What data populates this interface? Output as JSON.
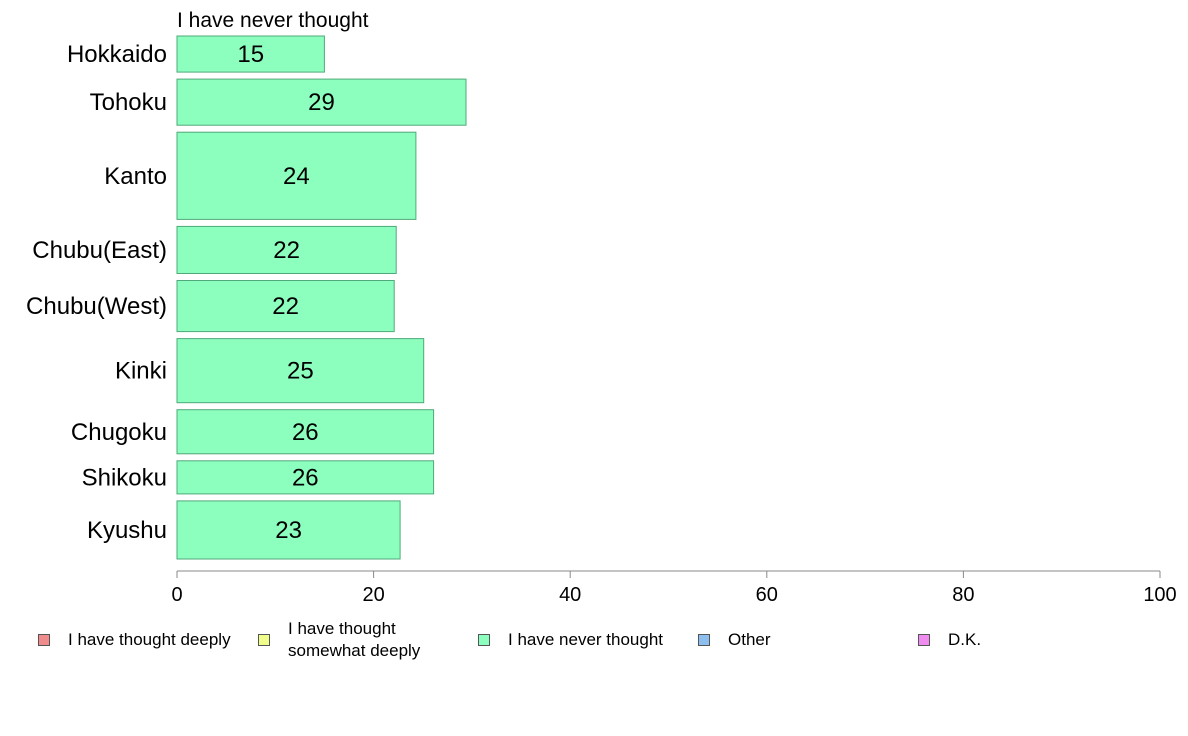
{
  "chart_data": {
    "type": "bar",
    "orientation": "horizontal",
    "title": "I have never thought",
    "categories": [
      "Hokkaido",
      "Tohoku",
      "Kanto",
      "Chubu(East)",
      "Chubu(West)",
      "Kinki",
      "Chugoku",
      "Shikoku",
      "Kyushu"
    ],
    "values": [
      15,
      29,
      24,
      22,
      22,
      25,
      26,
      26,
      23
    ],
    "bar_values": [
      15,
      29.4,
      24.3,
      22.3,
      22.1,
      25.1,
      26.1,
      26.1,
      22.7
    ],
    "bar_weights": [
      36,
      46,
      87,
      47,
      51,
      64,
      44,
      33,
      58
    ],
    "xlim": [
      0,
      100
    ],
    "xticks": [
      0,
      20,
      40,
      60,
      80,
      100
    ],
    "bar_color": "#8cffbe",
    "bar_edge_color": "#4fa97a",
    "grid": false,
    "legend_position": "bottom",
    "legend": [
      {
        "label": "I have thought deeply",
        "color": "#f08c8c"
      },
      {
        "label": "I have thought\nsomewhat deeply",
        "color": "#f0ff8c"
      },
      {
        "label": "I have never thought",
        "color": "#8cffbe"
      },
      {
        "label": "Other",
        "color": "#8cbef0"
      },
      {
        "label": "D.K.",
        "color": "#f08cf0"
      }
    ]
  }
}
